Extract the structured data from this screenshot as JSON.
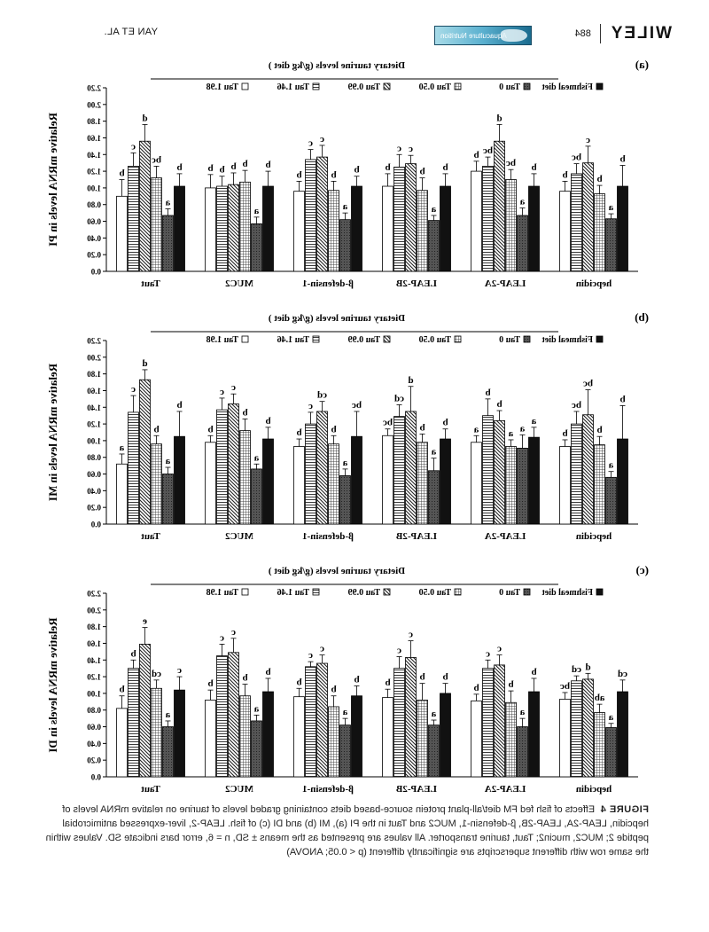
{
  "header": {
    "author": "YAN ET AL.",
    "brand": "WILEY",
    "page_number": "884",
    "journal_banner": "Aquaculture Nutrition"
  },
  "caption": {
    "label": "FIGURE 4",
    "text": "Effects of fish fed FM diet/all-plant protein source-based diets containing graded levels of taurine on relative mRNA levels of hepcidin, LEAP-2A, LEAP-2B, β-defensin-1, MUC2 and Taut in the PI (a), MI (b) and DI (c) of fish. LEAP-2, liver-expressed antimicrobial peptide 2; MUC2, mucin2; Taut, taurine transporter. All values are presented as the means ± SD, n = 6, error bars indicate SD. Values within the same row with different superscripts are significantly different (p < 0.05; ANOVA)"
  },
  "colors": {
    "bars": "#111111",
    "axis": "#000000"
  },
  "chart_data": [
    {
      "panel": "(a)",
      "type": "bar",
      "ylabel": "Relative mRNA levels in PI",
      "legend_title": "Dietary taurine levels (g/kg diet )",
      "legend": [
        "Fishmeal diet",
        "Tau 0",
        "Tau 0.50",
        "Tau 0.99",
        "Tau 1.46",
        "Tau 1.98"
      ],
      "ylim": [
        0,
        2.2
      ],
      "yticks": [
        "0.0",
        "0.20",
        "0.40",
        "0.60",
        "0.80",
        "1.00",
        "1.20",
        "1.40",
        "1.60",
        "1.80",
        "2.00",
        "2.20"
      ],
      "categories": [
        "hepcidin",
        "LEAP-2A",
        "LEAP-2B",
        "β-defensin-1",
        "MUC2",
        "Taut"
      ],
      "series": [
        {
          "name": "Fishmeal diet",
          "values": [
            1.02,
            1.02,
            1.02,
            1.02,
            1.02,
            1.02
          ],
          "errors": [
            0.25,
            0.15,
            0.15,
            0.12,
            0.18,
            0.15
          ],
          "letters": [
            "b",
            "b",
            "b",
            "b",
            "b",
            "b"
          ]
        },
        {
          "name": "Tau 0",
          "values": [
            0.63,
            0.67,
            0.61,
            0.62,
            0.57,
            0.67
          ],
          "errors": [
            0.06,
            0.09,
            0.06,
            0.08,
            0.08,
            0.08
          ],
          "letters": [
            "a",
            "a",
            "a",
            "a",
            "a",
            "a"
          ]
        },
        {
          "name": "Tau 0.50",
          "values": [
            0.93,
            1.1,
            0.97,
            0.97,
            1.07,
            1.12
          ],
          "errors": [
            0.1,
            0.12,
            0.15,
            0.11,
            0.14,
            0.14
          ],
          "letters": [
            "b",
            "bc",
            "b",
            "b",
            "b",
            "bc"
          ]
        },
        {
          "name": "Tau 0.99",
          "values": [
            1.3,
            1.56,
            1.29,
            1.37,
            1.04,
            1.56
          ],
          "errors": [
            0.2,
            0.2,
            0.1,
            0.14,
            0.14,
            0.2
          ],
          "letters": [
            "c",
            "d",
            "c",
            "c",
            "b",
            "d"
          ]
        },
        {
          "name": "Tau 1.46",
          "values": [
            1.17,
            1.26,
            1.25,
            1.34,
            1.02,
            1.26
          ],
          "errors": [
            0.12,
            0.11,
            0.15,
            0.12,
            0.12,
            0.16
          ],
          "letters": [
            "bc",
            "bc",
            "c",
            "c",
            "b",
            "c"
          ]
        },
        {
          "name": "Tau 1.98",
          "values": [
            0.96,
            1.2,
            1.02,
            0.96,
            1.0,
            0.9
          ],
          "errors": [
            0.12,
            0.12,
            0.15,
            0.12,
            0.16,
            0.2
          ],
          "letters": [
            "b",
            "b",
            "b",
            "b",
            "b",
            "b"
          ]
        }
      ]
    },
    {
      "panel": "(b)",
      "type": "bar",
      "ylabel": "Relative mRNA levels in MI",
      "legend_title": "Dietary taurine levels (g/kg diet )",
      "legend": [
        "Fishmeal diet",
        "Tau 0",
        "Tau 0.50",
        "Tau 0.99",
        "Tau 1.46",
        "Tau 1.98"
      ],
      "ylim": [
        0,
        2.2
      ],
      "yticks": [
        "0.0",
        "0.20",
        "0.40",
        "0.60",
        "0.80",
        "1.00",
        "1.20",
        "1.40",
        "1.60",
        "1.80",
        "2.00",
        "2.20"
      ],
      "categories": [
        "hepcidin",
        "LEAP-2A",
        "LEAP-2B",
        "β-defensin-1",
        "MUC2",
        "Taut"
      ],
      "series": [
        {
          "name": "Fishmeal diet",
          "values": [
            1.02,
            1.04,
            1.02,
            1.05,
            1.02,
            1.05
          ],
          "errors": [
            0.4,
            0.12,
            0.12,
            0.3,
            0.14,
            0.3
          ],
          "letters": [
            "b",
            "a",
            "b",
            "bc",
            "b",
            "b"
          ]
        },
        {
          "name": "Tau 0",
          "values": [
            0.56,
            0.91,
            0.64,
            0.58,
            0.66,
            0.6
          ],
          "errors": [
            0.07,
            0.16,
            0.15,
            0.08,
            0.06,
            0.08
          ],
          "letters": [
            "a",
            "a",
            "a",
            "a",
            "a",
            "a"
          ]
        },
        {
          "name": "Tau 0.50",
          "values": [
            0.95,
            0.93,
            0.98,
            0.96,
            1.12,
            0.96
          ],
          "errors": [
            0.1,
            0.08,
            0.1,
            0.1,
            0.14,
            0.1
          ],
          "letters": [
            "b",
            "a",
            "b",
            "b",
            "b",
            "b"
          ]
        },
        {
          "name": "Tau 0.99",
          "values": [
            1.31,
            1.24,
            1.35,
            1.35,
            1.44,
            1.73
          ],
          "errors": [
            0.3,
            0.12,
            0.3,
            0.12,
            0.12,
            0.12
          ],
          "letters": [
            "bc",
            "b",
            "d",
            "cd",
            "c",
            "d"
          ]
        },
        {
          "name": "Tau 1.46",
          "values": [
            1.2,
            1.3,
            1.29,
            1.2,
            1.37,
            1.34
          ],
          "errors": [
            0.15,
            0.2,
            0.14,
            0.14,
            0.14,
            0.2
          ],
          "letters": [
            "bc",
            "b",
            "cd",
            "c",
            "c",
            "c"
          ]
        },
        {
          "name": "Tau 1.98",
          "values": [
            0.93,
            0.98,
            1.06,
            0.93,
            0.98,
            0.72
          ],
          "errors": [
            0.08,
            0.08,
            0.08,
            0.09,
            0.08,
            0.12
          ],
          "letters": [
            "b",
            "a",
            "bc",
            "b",
            "b",
            "a"
          ]
        }
      ]
    },
    {
      "panel": "(c)",
      "type": "bar",
      "ylabel": "Relative mRNA levels in DI",
      "legend_title": "Dietary taurine levels (g/kg diet )",
      "legend": [
        "Fishmeal diet",
        "Tau 0",
        "Tau 0.50",
        "Tau 0.99",
        "Tau 1.46",
        "Tau 1.98"
      ],
      "ylim": [
        0,
        2.2
      ],
      "yticks": [
        "0.0",
        "0.20",
        "0.40",
        "0.60",
        "0.80",
        "1.00",
        "1.20",
        "1.40",
        "1.60",
        "1.80",
        "2.00",
        "2.20"
      ],
      "categories": [
        "hepcidin",
        "LEAP-2A",
        "LEAP-2B",
        "β-defensin-1",
        "MUC2",
        "Taut"
      ],
      "series": [
        {
          "name": "Fishmeal diet",
          "values": [
            1.02,
            1.02,
            1.0,
            0.97,
            1.02,
            1.04
          ],
          "errors": [
            0.14,
            0.16,
            0.12,
            0.12,
            0.16,
            0.16
          ],
          "letters": [
            "cd",
            "b",
            "b",
            "b",
            "b",
            "c"
          ]
        },
        {
          "name": "Tau 0",
          "values": [
            0.59,
            0.6,
            0.62,
            0.62,
            0.67,
            0.6
          ],
          "errors": [
            0.05,
            0.1,
            0.06,
            0.08,
            0.07,
            0.07
          ],
          "letters": [
            "a",
            "a",
            "a",
            "a",
            "a",
            "a"
          ]
        },
        {
          "name": "Tau 0.50",
          "values": [
            0.77,
            0.89,
            0.92,
            0.84,
            0.97,
            1.06
          ],
          "errors": [
            0.1,
            0.14,
            0.2,
            0.13,
            0.14,
            0.1
          ],
          "letters": [
            "ab",
            "b",
            "b",
            "b",
            "b",
            "cd"
          ]
        },
        {
          "name": "Tau 0.99",
          "values": [
            1.17,
            1.34,
            1.43,
            1.36,
            1.49,
            1.59
          ],
          "errors": [
            0.07,
            0.12,
            0.2,
            0.1,
            0.17,
            0.2
          ],
          "letters": [
            "d",
            "c",
            "c",
            "c",
            "c",
            "e"
          ]
        },
        {
          "name": "Tau 1.46",
          "values": [
            1.15,
            1.3,
            1.3,
            1.32,
            1.45,
            1.3
          ],
          "errors": [
            0.06,
            0.1,
            0.14,
            0.06,
            0.14,
            0.1
          ],
          "letters": [
            "cd",
            "c",
            "c",
            "c",
            "c",
            "b"
          ]
        },
        {
          "name": "Tau 1.98",
          "values": [
            0.93,
            0.91,
            0.95,
            0.96,
            0.92,
            0.82
          ],
          "errors": [
            0.08,
            0.08,
            0.1,
            0.1,
            0.12,
            0.15
          ],
          "letters": [
            "bc",
            "b",
            "b",
            "b",
            "b",
            "b"
          ]
        }
      ]
    }
  ]
}
